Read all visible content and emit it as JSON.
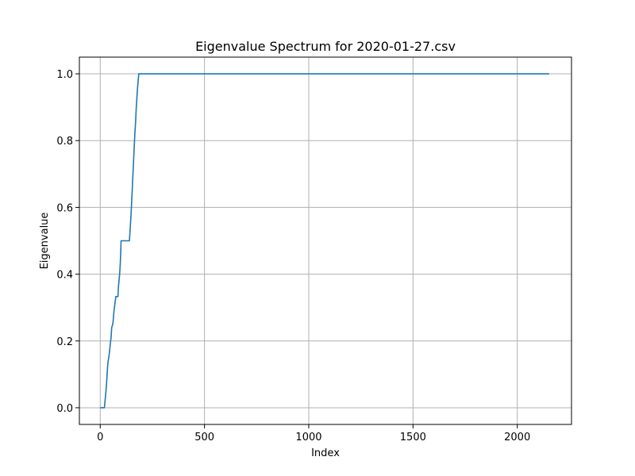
{
  "chart_data": {
    "type": "line",
    "title": "Eigenvalue Spectrum for 2020-01-27.csv",
    "xlabel": "Index",
    "ylabel": "Eigenvalue",
    "xlim": [
      -100,
      2260
    ],
    "ylim": [
      -0.05,
      1.05
    ],
    "xticks": [
      0,
      500,
      1000,
      1500,
      2000
    ],
    "yticks": [
      0.0,
      0.2,
      0.4,
      0.6,
      0.8,
      1.0
    ],
    "xtick_labels": [
      "0",
      "500",
      "1000",
      "1500",
      "2000"
    ],
    "ytick_labels": [
      "0.0",
      "0.2",
      "0.4",
      "0.6",
      "0.8",
      "1.0"
    ],
    "grid": true,
    "line_color": "#1f77b4",
    "series": [
      {
        "x": [
          0,
          20,
          23,
          26,
          29,
          32,
          35,
          38,
          41,
          45,
          48,
          52,
          55,
          60,
          62,
          66,
          70,
          75,
          77,
          80,
          85,
          87,
          90,
          93,
          96,
          98,
          100,
          104,
          110,
          120,
          130,
          140,
          142,
          145,
          148,
          151,
          154,
          157,
          160,
          163,
          166,
          170,
          172,
          175,
          178,
          182,
          185,
          188,
          2153
        ],
        "y": [
          0.0,
          0.0,
          0.02,
          0.04,
          0.06,
          0.09,
          0.12,
          0.14,
          0.15,
          0.17,
          0.19,
          0.21,
          0.24,
          0.25,
          0.26,
          0.29,
          0.31,
          0.333,
          0.333,
          0.333,
          0.333,
          0.36,
          0.38,
          0.4,
          0.43,
          0.46,
          0.5,
          0.5,
          0.5,
          0.5,
          0.5,
          0.5,
          0.52,
          0.55,
          0.58,
          0.62,
          0.66,
          0.7,
          0.74,
          0.78,
          0.82,
          0.86,
          0.89,
          0.92,
          0.95,
          0.98,
          1.0,
          1.0,
          1.0
        ]
      }
    ]
  }
}
